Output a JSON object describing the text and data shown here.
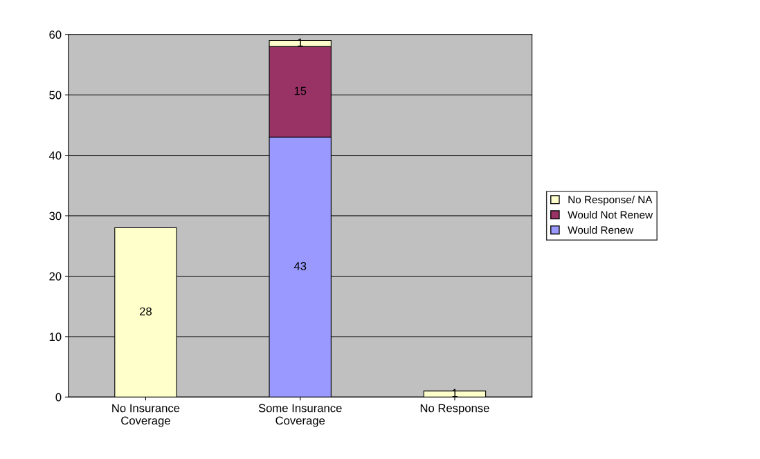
{
  "chart_data": {
    "type": "bar",
    "stacked": true,
    "categories": [
      "No Insurance\nCoverage",
      "Some Insurance\nCoverage",
      "No Response"
    ],
    "series": [
      {
        "name": "Would Renew",
        "color": "#9999ff",
        "values": [
          null,
          43,
          null
        ]
      },
      {
        "name": "Would Not Renew",
        "color": "#993366",
        "values": [
          null,
          15,
          null
        ]
      },
      {
        "name": "No Response/ NA",
        "color": "#ffffcc",
        "values": [
          28,
          1,
          1
        ]
      }
    ],
    "ylim": [
      0,
      60
    ],
    "yticks": [
      0,
      10,
      20,
      30,
      40,
      50,
      60
    ],
    "grid": "y",
    "legend": "right",
    "data_labels": true
  }
}
